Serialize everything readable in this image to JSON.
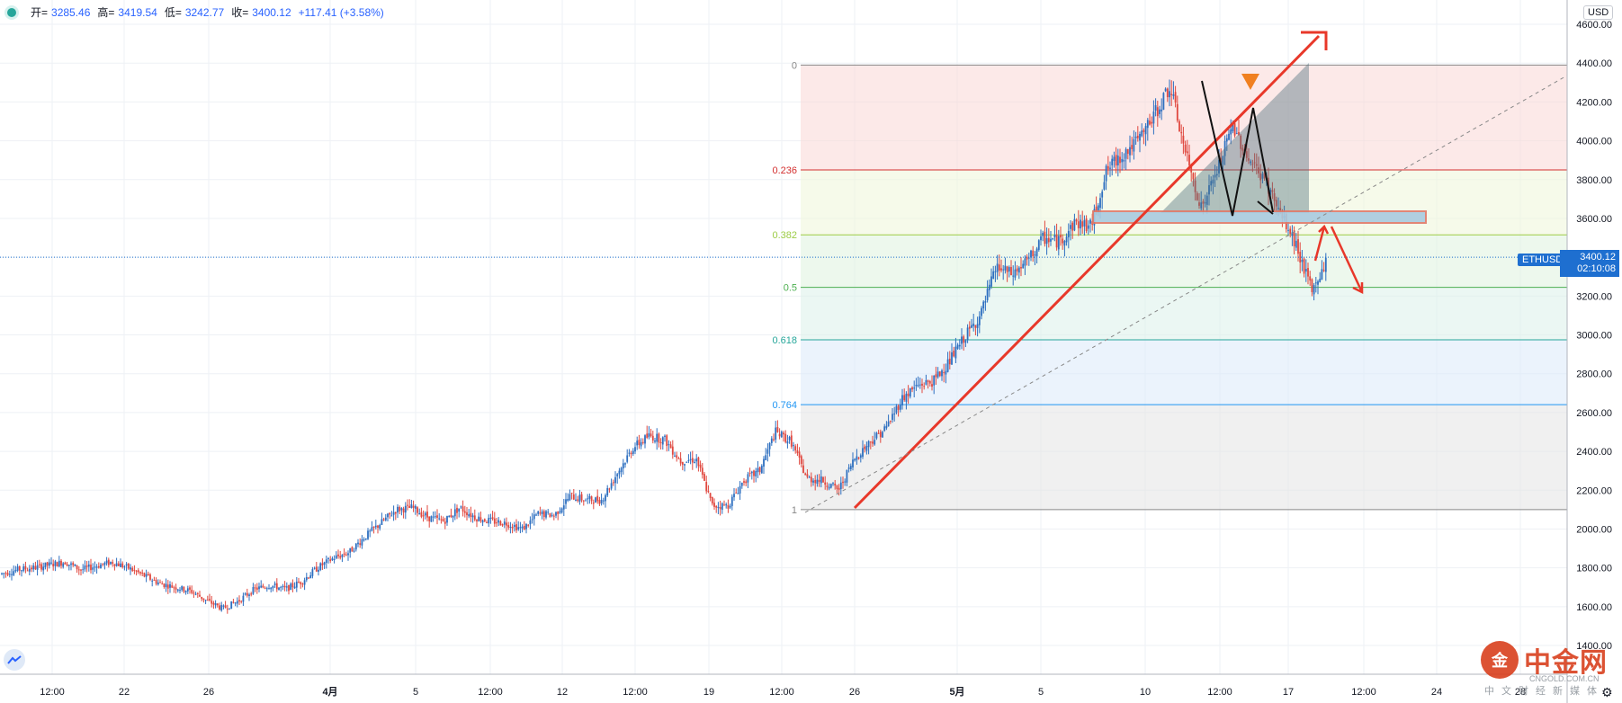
{
  "header": {
    "open_label": "开=",
    "open": "3285.46",
    "high_label": "高=",
    "high": "3419.54",
    "low_label": "低=",
    "low": "3242.77",
    "close_label": "收=",
    "close": "3400.12",
    "change": "+117.41 (+3.58%)"
  },
  "currency": "USD",
  "price_tag": {
    "symbol": "ETHUSD",
    "price": "3400.12",
    "countdown": "02:10:08"
  },
  "watermark": {
    "brand": "中金网",
    "sub": "CNGOLD.COM.CN",
    "sub2": "中文财经新媒体"
  },
  "colors": {
    "up": "#2d6fc0",
    "down": "#e0483f",
    "grid": "#eef1f5",
    "fib_0": "#888888",
    "fib_236": "#d32f2f",
    "fib_382": "#9ccc45",
    "fib_5": "#4caf50",
    "fib_618": "#26a69a",
    "fib_764": "#2196f3",
    "fib_1": "#888888",
    "trend": "#e8382a"
  },
  "chart_data": {
    "type": "candlestick",
    "symbol": "ETHUSD",
    "y_axis": {
      "ticks": [
        "1400.00",
        "1600.00",
        "1800.00",
        "2000.00",
        "2200.00",
        "2400.00",
        "2600.00",
        "2800.00",
        "3000.00",
        "3200.00",
        "3400.00",
        "3600.00",
        "3800.00",
        "4000.00",
        "4200.00",
        "4400.00",
        "4600.00"
      ],
      "ylim": [
        1390,
        4660
      ]
    },
    "x_axis": {
      "ticks": [
        "12:00",
        "22",
        "26",
        "4月",
        "5",
        "12:00",
        "12",
        "12:00",
        "19",
        "12:00",
        "26",
        "5月",
        "5",
        "10",
        "12:00",
        "17",
        "12:00",
        "24",
        "28"
      ],
      "bold": [
        "4月",
        "5月"
      ]
    },
    "last_price": 3400.12,
    "fibonacci": {
      "high": 4390,
      "low": 2100,
      "levels": [
        {
          "label": "0",
          "ratio": 0
        },
        {
          "label": "0.236",
          "ratio": 0.236
        },
        {
          "label": "0.382",
          "ratio": 0.382
        },
        {
          "label": "0.5",
          "ratio": 0.5
        },
        {
          "label": "0.618",
          "ratio": 0.618
        },
        {
          "label": "0.764",
          "ratio": 0.764
        },
        {
          "label": "1",
          "ratio": 1
        }
      ]
    },
    "close_path": [
      [
        0,
        1770
      ],
      [
        10,
        1790
      ],
      [
        20,
        1800
      ],
      [
        30,
        1815
      ],
      [
        40,
        1830
      ],
      [
        50,
        1790
      ],
      [
        60,
        1810
      ],
      [
        70,
        1830
      ],
      [
        80,
        1800
      ],
      [
        90,
        1760
      ],
      [
        100,
        1720
      ],
      [
        110,
        1700
      ],
      [
        120,
        1680
      ],
      [
        130,
        1630
      ],
      [
        140,
        1590
      ],
      [
        150,
        1630
      ],
      [
        160,
        1690
      ],
      [
        170,
        1710
      ],
      [
        180,
        1690
      ],
      [
        190,
        1730
      ],
      [
        200,
        1800
      ],
      [
        210,
        1850
      ],
      [
        220,
        1880
      ],
      [
        230,
        1960
      ],
      [
        240,
        2030
      ],
      [
        250,
        2100
      ],
      [
        260,
        2110
      ],
      [
        270,
        2060
      ],
      [
        280,
        2040
      ],
      [
        290,
        2110
      ],
      [
        300,
        2060
      ],
      [
        310,
        2040
      ],
      [
        320,
        2030
      ],
      [
        330,
        2000
      ],
      [
        340,
        2080
      ],
      [
        350,
        2070
      ],
      [
        360,
        2170
      ],
      [
        370,
        2150
      ],
      [
        380,
        2150
      ],
      [
        390,
        2290
      ],
      [
        400,
        2420
      ],
      [
        410,
        2480
      ],
      [
        420,
        2460
      ],
      [
        430,
        2350
      ],
      [
        440,
        2360
      ],
      [
        450,
        2120
      ],
      [
        460,
        2120
      ],
      [
        470,
        2250
      ],
      [
        480,
        2300
      ],
      [
        490,
        2500
      ],
      [
        500,
        2450
      ],
      [
        510,
        2260
      ],
      [
        520,
        2250
      ],
      [
        530,
        2200
      ],
      [
        540,
        2360
      ],
      [
        550,
        2450
      ],
      [
        560,
        2520
      ],
      [
        570,
        2670
      ],
      [
        580,
        2740
      ],
      [
        590,
        2760
      ],
      [
        600,
        2860
      ],
      [
        610,
        2990
      ],
      [
        620,
        3100
      ],
      [
        630,
        3350
      ],
      [
        640,
        3310
      ],
      [
        650,
        3380
      ],
      [
        660,
        3500
      ],
      [
        670,
        3480
      ],
      [
        680,
        3580
      ],
      [
        690,
        3560
      ],
      [
        700,
        3850
      ],
      [
        710,
        3930
      ],
      [
        720,
        4000
      ],
      [
        730,
        4130
      ],
      [
        740,
        4280
      ],
      [
        750,
        3930
      ],
      [
        760,
        3650
      ],
      [
        770,
        3850
      ],
      [
        780,
        4080
      ],
      [
        790,
        3900
      ],
      [
        800,
        3800
      ],
      [
        810,
        3620
      ],
      [
        820,
        3460
      ],
      [
        830,
        3220
      ],
      [
        840,
        3400
      ]
    ]
  }
}
